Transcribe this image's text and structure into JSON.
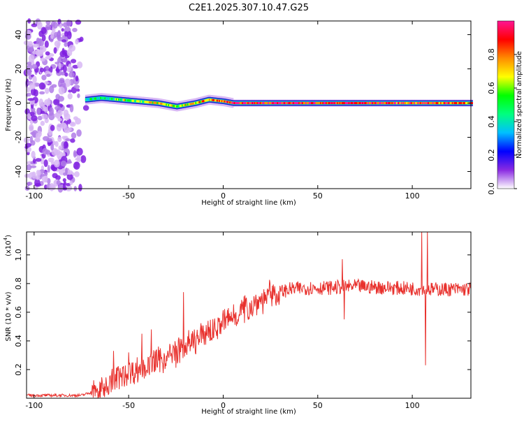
{
  "title": "C2E1.2025.307.10.47.G25",
  "chart_data": [
    {
      "type": "heatmap",
      "name": "spectrogram",
      "xlabel": "Height of straight line (km)",
      "ylabel": "Frequency (Hz)",
      "xlim": [
        -104,
        131
      ],
      "ylim": [
        -50,
        48
      ],
      "xticks": [
        -100,
        -50,
        0,
        50,
        100
      ],
      "yticks": [
        -40,
        -20,
        0,
        20,
        40
      ],
      "colorbar": {
        "label": "Normalized spectral amplitude",
        "range": [
          0,
          1
        ],
        "ticks": [
          "0.0",
          "0.2",
          "0.4",
          "0.6",
          "0.8"
        ],
        "colors": [
          "#ffffff",
          "#8a2be2",
          "#0000ff",
          "#00bfff",
          "#00ff7f",
          "#00ff00",
          "#ffff00",
          "#ff8c00",
          "#ff0000",
          "#ff1493"
        ]
      },
      "noise_region_km": [
        -104,
        -71
      ],
      "ridge": [
        {
          "x": -73,
          "f": 2,
          "a": 0.45
        },
        {
          "x": -65,
          "f": 3,
          "a": 0.5
        },
        {
          "x": -55,
          "f": 2,
          "a": 0.55
        },
        {
          "x": -45,
          "f": 1,
          "a": 0.6
        },
        {
          "x": -35,
          "f": 0,
          "a": 0.7
        },
        {
          "x": -25,
          "f": -2,
          "a": 0.6
        },
        {
          "x": -15,
          "f": 0,
          "a": 0.7
        },
        {
          "x": -8,
          "f": 2,
          "a": 0.75
        },
        {
          "x": 0,
          "f": 1,
          "a": 0.8
        },
        {
          "x": 5,
          "f": 0,
          "a": 0.9
        },
        {
          "x": 20,
          "f": 0,
          "a": 0.95
        },
        {
          "x": 50,
          "f": 0,
          "a": 0.9
        },
        {
          "x": 80,
          "f": 0,
          "a": 0.9
        },
        {
          "x": 105,
          "f": 0,
          "a": 0.85
        },
        {
          "x": 131,
          "f": 0,
          "a": 0.85
        }
      ]
    },
    {
      "type": "line",
      "name": "snr",
      "xlabel": "Height of straight line (km)",
      "ylabel": "SNR (10 * v/v)",
      "exponent_base": "(x10",
      "exponent_power": "4",
      "exponent_close": ")",
      "xlim": [
        -104,
        131
      ],
      "ylim": [
        0,
        1.16
      ],
      "xticks": [
        -100,
        -50,
        0,
        50,
        100
      ],
      "yticks": [
        "0.2",
        "0.4",
        "0.6",
        "0.8",
        "1.0"
      ],
      "line_color": "#e8302c",
      "trend": [
        {
          "x": -104,
          "y": 0.02
        },
        {
          "x": -75,
          "y": 0.02
        },
        {
          "x": -65,
          "y": 0.06
        },
        {
          "x": -55,
          "y": 0.15
        },
        {
          "x": -45,
          "y": 0.2
        },
        {
          "x": -35,
          "y": 0.25
        },
        {
          "x": -25,
          "y": 0.32
        },
        {
          "x": -15,
          "y": 0.4
        },
        {
          "x": -5,
          "y": 0.48
        },
        {
          "x": 5,
          "y": 0.57
        },
        {
          "x": 15,
          "y": 0.65
        },
        {
          "x": 25,
          "y": 0.72
        },
        {
          "x": 35,
          "y": 0.76
        },
        {
          "x": 45,
          "y": 0.77
        },
        {
          "x": 55,
          "y": 0.77
        },
        {
          "x": 70,
          "y": 0.78
        },
        {
          "x": 90,
          "y": 0.77
        },
        {
          "x": 110,
          "y": 0.76
        },
        {
          "x": 131,
          "y": 0.76
        }
      ],
      "spikes": [
        {
          "x": -58,
          "y": 0.33
        },
        {
          "x": -50,
          "y": 0.32
        },
        {
          "x": -43,
          "y": 0.45
        },
        {
          "x": -38,
          "y": 0.48
        },
        {
          "x": -21,
          "y": 0.74
        },
        {
          "x": -8,
          "y": 0.54
        },
        {
          "x": 63,
          "y": 0.97
        },
        {
          "x": 64,
          "y": 0.55
        },
        {
          "x": 105,
          "y": 1.16
        },
        {
          "x": 107,
          "y": 0.23
        },
        {
          "x": 108,
          "y": 1.16
        }
      ]
    }
  ]
}
